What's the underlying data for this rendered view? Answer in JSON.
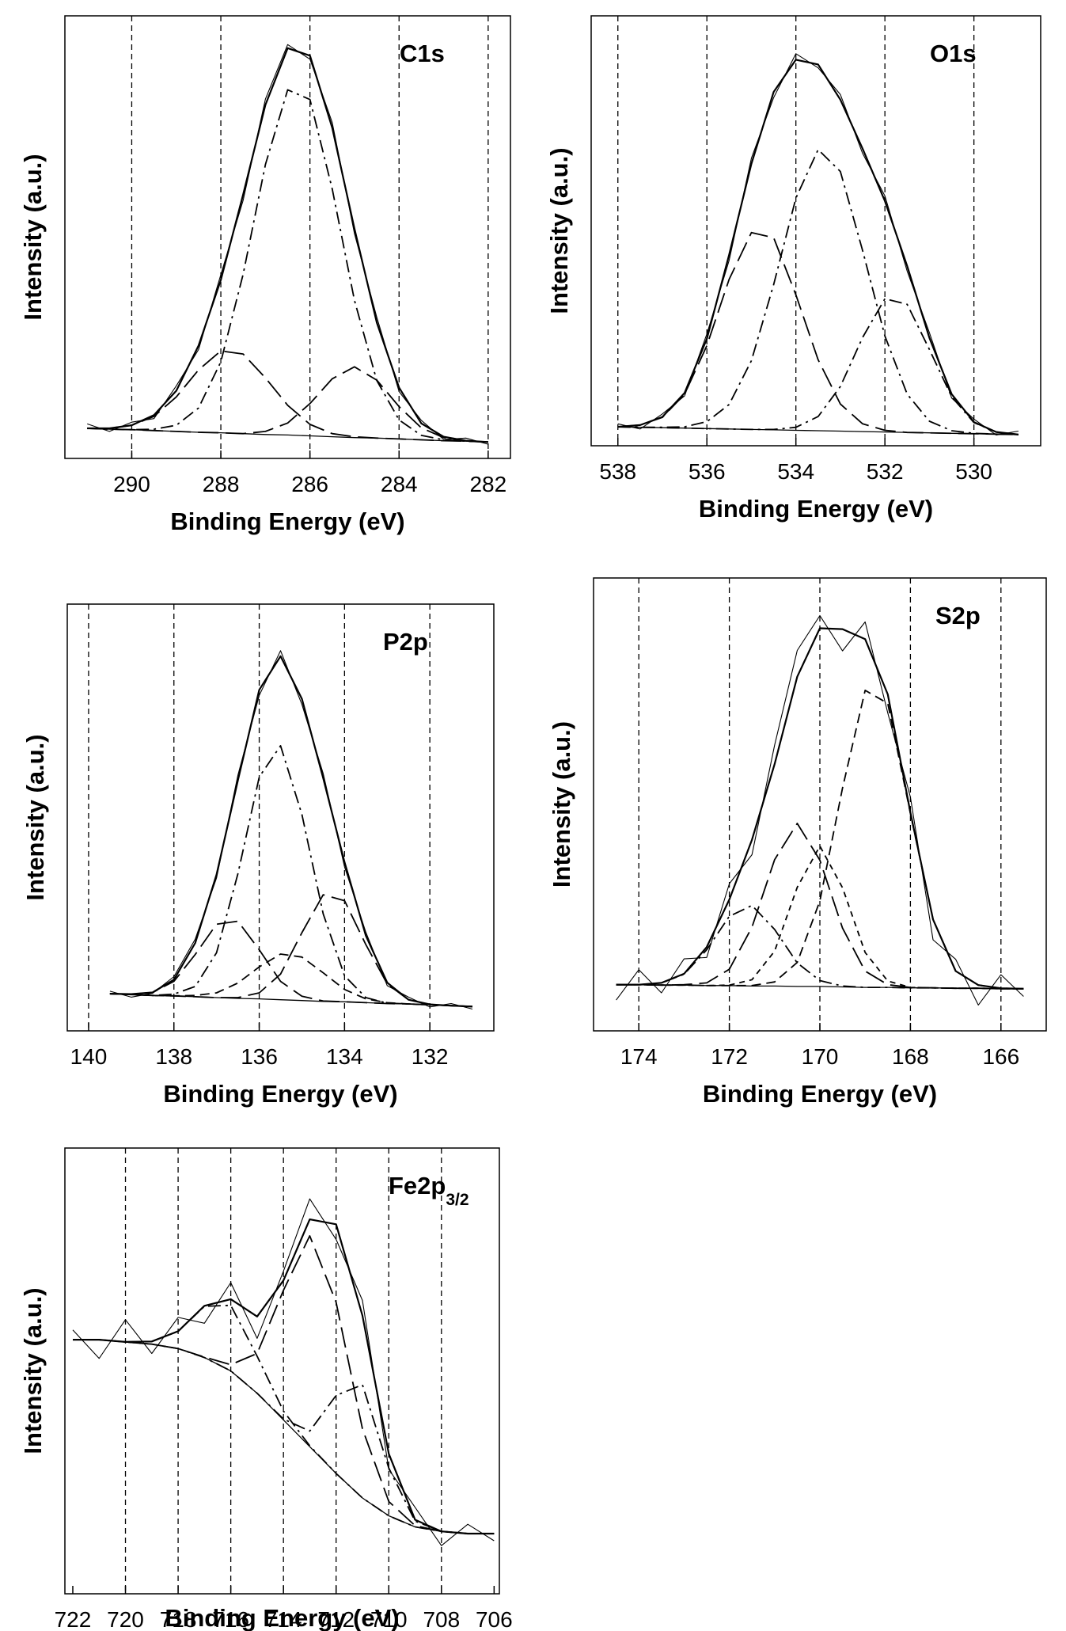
{
  "chart_data": [
    {
      "type": "line",
      "title": "C1s",
      "xlabel": "Binding Energy (eV)",
      "ylabel": "Intensity (a.u.)",
      "xlim": [
        291.5,
        281.5
      ],
      "xticks": [
        290,
        288,
        286,
        284,
        282
      ],
      "ylim": [
        0,
        100
      ],
      "vlines": [
        290,
        288,
        286,
        284,
        282
      ],
      "x": [
        291,
        290.5,
        290,
        289.5,
        289,
        288.5,
        288,
        287.5,
        287,
        286.5,
        286,
        285.5,
        285,
        284.5,
        284,
        283.5,
        283,
        282.5,
        282
      ],
      "series": [
        {
          "style": "solid",
          "color": "#000",
          "values": [
            6.8,
            6.6,
            6.5,
            6.3,
            6.1,
            5.9,
            5.8,
            5.6,
            5.4,
            5.3,
            5.1,
            4.9,
            4.7,
            4.6,
            4.4,
            4.2,
            4.0,
            3.9,
            3.7
          ]
        },
        {
          "style": "dashdot",
          "color": "#000",
          "values": [
            6.8,
            6.6,
            6.5,
            6.6,
            7.5,
            11.4,
            21.8,
            41.6,
            66.4,
            83.3,
            81.1,
            60.9,
            35.7,
            17.6,
            8.7,
            5.2,
            4.2,
            3.9,
            3.7
          ]
        },
        {
          "style": "longdash",
          "color": "#000",
          "values": [
            6.8,
            6.8,
            7.5,
            9.5,
            13.9,
            20.0,
            24.3,
            23.6,
            18.2,
            12.0,
            7.7,
            5.6,
            4.9,
            4.6,
            4.4,
            4.2,
            4.0,
            3.9,
            3.7
          ]
        },
        {
          "style": "longdash",
          "color": "#000",
          "values": [
            6.8,
            6.6,
            6.5,
            6.3,
            6.1,
            5.9,
            5.8,
            5.6,
            6.1,
            8.0,
            12.4,
            18.0,
            20.7,
            17.7,
            11.7,
            6.9,
            4.7,
            4.0,
            3.7
          ]
        },
        {
          "style": "envelope",
          "color": "#000",
          "values": [
            6.8,
            6.8,
            7.5,
            9.8,
            15.3,
            25.5,
            40.3,
            59.6,
            79.9,
            92.7,
            91.0,
            74.7,
            51.9,
            30.7,
            16.0,
            7.9,
            4.9,
            4.0,
            3.7
          ]
        },
        {
          "style": "raw",
          "color": "#000",
          "values": [
            7.8,
            6.1,
            8.2,
            9.0,
            16.4,
            24.6,
            41.5,
            58.3,
            81.2,
            93.5,
            90.2,
            75.9,
            50.8,
            31.9,
            15.1,
            8.6,
            4.3,
            4.6,
            3.2
          ]
        }
      ]
    },
    {
      "type": "line",
      "title": "O1s",
      "xlabel": "Binding Energy (eV)",
      "ylabel": "Intensity (a.u.)",
      "xlim": [
        538.6,
        528.5
      ],
      "xticks": [
        538,
        536,
        534,
        532,
        530
      ],
      "ylim": [
        0,
        100
      ],
      "vlines": [
        538,
        536,
        534,
        532,
        530
      ],
      "x": [
        538,
        537.5,
        537,
        536.5,
        536,
        535.5,
        535,
        534.5,
        534,
        533.5,
        533,
        532.5,
        532,
        531.5,
        531,
        530.5,
        530,
        529.5,
        529
      ],
      "series": [
        {
          "style": "solid",
          "color": "#000",
          "values": [
            4.4,
            4.3,
            4.2,
            4.1,
            4.0,
            3.9,
            3.8,
            3.7,
            3.6,
            3.5,
            3.4,
            3.3,
            3.2,
            3.1,
            3.0,
            2.9,
            2.8,
            2.7,
            2.6
          ]
        },
        {
          "style": "longdash",
          "color": "#000",
          "values": [
            4.4,
            4.8,
            6.6,
            12.0,
            23.3,
            38.7,
            49.6,
            48.4,
            35.1,
            20.0,
            9.7,
            5.1,
            3.6,
            3.1,
            3.0,
            2.9,
            2.8,
            2.7,
            2.6
          ]
        },
        {
          "style": "dashdot",
          "color": "#000",
          "values": [
            4.4,
            4.3,
            4.3,
            4.4,
            5.6,
            9.6,
            19.8,
            37.5,
            57.6,
            68.9,
            63.8,
            45.4,
            25.5,
            12.0,
            5.7,
            3.5,
            2.9,
            2.7,
            2.6
          ]
        },
        {
          "style": "dashdot",
          "color": "#000",
          "values": [
            4.4,
            4.3,
            4.2,
            4.1,
            4.0,
            3.9,
            3.8,
            3.8,
            4.3,
            6.8,
            13.8,
            25.2,
            34.2,
            32.9,
            22.4,
            11.4,
            5.4,
            3.2,
            2.6
          ]
        },
        {
          "style": "envelope",
          "color": "#000",
          "values": [
            4.4,
            4.8,
            6.7,
            12.3,
            24.9,
            44.4,
            65.6,
            82.3,
            89.8,
            88.7,
            80.5,
            69.1,
            56.9,
            41.8,
            25.1,
            12.0,
            5.5,
            3.2,
            2.6
          ]
        },
        {
          "style": "raw",
          "color": "#000",
          "values": [
            5.1,
            3.9,
            7.4,
            11.6,
            26.0,
            43.1,
            66.9,
            81.0,
            91.2,
            87.9,
            81.7,
            68.0,
            58.1,
            40.6,
            26.3,
            11.1,
            6.2,
            2.5,
            3.4
          ]
        }
      ]
    },
    {
      "type": "line",
      "title": "P2p",
      "xlabel": "Binding Energy (eV)",
      "ylabel": "Intensity (a.u.)",
      "xlim": [
        140.5,
        130.5
      ],
      "xticks": [
        140,
        138,
        136,
        134,
        132
      ],
      "ylim": [
        0,
        100
      ],
      "vlines": [
        140,
        138,
        136,
        134,
        132
      ],
      "x": [
        139.5,
        139,
        138.5,
        138,
        137.5,
        137,
        136.5,
        136,
        135.5,
        135,
        134.5,
        134,
        133.5,
        133,
        132.5,
        132,
        131.5,
        131
      ],
      "series": [
        {
          "style": "solid",
          "color": "#000",
          "values": [
            8.7,
            8.5,
            8.3,
            8.2,
            8.0,
            7.8,
            7.6,
            7.5,
            7.3,
            7.1,
            6.9,
            6.8,
            6.6,
            6.4,
            6.3,
            6.1,
            5.9,
            5.7
          ]
        },
        {
          "style": "dashdot",
          "color": "#000",
          "values": [
            8.7,
            8.5,
            8.3,
            8.6,
            10.4,
            18.3,
            36.8,
            59.5,
            66.8,
            50.7,
            27.4,
            12.9,
            7.8,
            6.5,
            6.3,
            6.1,
            5.9,
            5.7
          ]
        },
        {
          "style": "longdash",
          "color": "#000",
          "values": [
            8.7,
            8.6,
            9.0,
            11.6,
            17.9,
            25.0,
            25.7,
            19.0,
            11.6,
            8.1,
            7.0,
            6.8,
            6.6,
            6.4,
            6.3,
            6.1,
            5.9,
            5.7
          ]
        },
        {
          "style": "longdash",
          "color": "#000",
          "values": [
            8.7,
            8.5,
            8.3,
            8.2,
            8.0,
            7.8,
            7.8,
            8.9,
            13.3,
            23.0,
            31.9,
            30.5,
            20.2,
            11.0,
            7.3,
            6.2,
            5.9,
            5.7
          ]
        },
        {
          "style": "dash",
          "color": "#000",
          "values": [
            8.7,
            8.5,
            8.3,
            8.2,
            8.3,
            8.9,
            11.2,
            15.0,
            18.0,
            17.3,
            13.6,
            9.7,
            7.5,
            6.6,
            6.3,
            6.1,
            5.9,
            5.7
          ]
        },
        {
          "style": "envelope",
          "color": "#000",
          "values": [
            8.7,
            8.6,
            9.0,
            12.0,
            20.6,
            36.6,
            58.7,
            79.9,
            87.8,
            77.8,
            59.2,
            39.5,
            22.3,
            11.3,
            7.3,
            6.2,
            5.9,
            5.7
          ]
        },
        {
          "style": "raw",
          "color": "#000",
          "values": [
            9.3,
            7.9,
            8.8,
            12.7,
            21.5,
            35.8,
            59.9,
            78.6,
            89.1,
            76.5,
            60.3,
            38.4,
            23.1,
            10.6,
            7.9,
            5.6,
            6.4,
            5.1
          ]
        }
      ]
    },
    {
      "type": "line",
      "title": "S2p",
      "xlabel": "Binding Energy (eV)",
      "ylabel": "Intensity (a.u.)",
      "xlim": [
        175,
        165
      ],
      "xticks": [
        174,
        172,
        170,
        168,
        166
      ],
      "ylim": [
        0,
        100
      ],
      "vlines": [
        174,
        172,
        170,
        168,
        166
      ],
      "x": [
        174.5,
        174,
        173.5,
        173,
        172.5,
        172,
        171.5,
        171,
        170.5,
        170,
        169.5,
        169,
        168.5,
        168,
        167.5,
        167,
        166.5,
        166,
        165.5
      ],
      "series": [
        {
          "style": "solid",
          "color": "#000",
          "values": [
            10.2,
            10.2,
            10.1,
            10.1,
            10.0,
            10.0,
            9.9,
            9.9,
            9.8,
            9.8,
            9.7,
            9.6,
            9.6,
            9.5,
            9.5,
            9.4,
            9.4,
            9.3,
            9.3
          ]
        },
        {
          "style": "dash",
          "color": "#000",
          "values": [
            10.2,
            10.2,
            10.1,
            10.1,
            10.0,
            10.0,
            10.0,
            10.8,
            15.1,
            28.7,
            53.6,
            75.2,
            72.3,
            48.0,
            24.6,
            13.2,
            10.1,
            9.4,
            9.3
          ]
        },
        {
          "style": "longdash",
          "color": "#000",
          "values": [
            10.2,
            10.2,
            10.1,
            10.2,
            10.6,
            13.6,
            22.9,
            37.8,
            45.8,
            37.7,
            22.7,
            13.2,
            10.2,
            9.6,
            9.5,
            9.4,
            9.4,
            9.3,
            9.3
          ]
        },
        {
          "style": "shortdash",
          "color": "#000",
          "values": [
            10.2,
            10.2,
            10.1,
            10.1,
            10.0,
            10.1,
            11.3,
            17.6,
            31.7,
            40.8,
            31.6,
            17.3,
            11.0,
            9.6,
            9.5,
            9.4,
            9.4,
            9.3,
            9.3
          ]
        },
        {
          "style": "dashdot",
          "color": "#000",
          "values": [
            10.2,
            10.2,
            10.6,
            12.5,
            17.9,
            25.3,
            27.7,
            22.4,
            15.0,
            11.1,
            9.9,
            9.6,
            9.6,
            9.5,
            9.5,
            9.4,
            9.4,
            9.3,
            9.3
          ]
        },
        {
          "style": "envelope",
          "color": "#000",
          "values": [
            10.2,
            10.2,
            10.6,
            12.6,
            18.5,
            29.0,
            42.2,
            58.9,
            78.2,
            88.9,
            88.7,
            86.5,
            74.3,
            48.2,
            24.6,
            13.2,
            10.1,
            9.4,
            9.3
          ]
        },
        {
          "style": "raw",
          "color": "#000",
          "values": [
            6.8,
            13.5,
            8.4,
            15.9,
            16.2,
            32.5,
            38.9,
            63.1,
            84.0,
            91.7,
            83.9,
            90.3,
            70.2,
            51.6,
            20.1,
            15.8,
            5.7,
            12.4,
            7.6
          ]
        }
      ]
    },
    {
      "type": "line",
      "title": "Fe2p",
      "title_sub": "3/2",
      "xlabel": "Binding Energy (eV)",
      "ylabel": "Intensity (a.u.)",
      "xlim": [
        722.3,
        705.8
      ],
      "xticks": [
        722,
        720,
        718,
        716,
        714,
        712,
        710,
        708,
        706
      ],
      "ylim": [
        0,
        100
      ],
      "vlines": [
        720,
        718,
        716,
        714,
        712,
        710,
        708
      ],
      "x": [
        722,
        721,
        720,
        719,
        718,
        717,
        716,
        715,
        714,
        713,
        712,
        711,
        710,
        709,
        708,
        707,
        706
      ],
      "series": [
        {
          "style": "solid",
          "color": "#000",
          "values": [
            57,
            57,
            56.5,
            56,
            55,
            53,
            50,
            45,
            39,
            33,
            27,
            21.5,
            17.5,
            15,
            14,
            13.5,
            13.5
          ]
        },
        {
          "style": "dashdot",
          "color": "#000",
          "values": [
            57,
            57,
            56.5,
            56.6,
            58.9,
            64.5,
            64.7,
            53.3,
            41.0,
            33.2,
            27,
            21.5,
            17.5,
            15,
            14,
            13.5,
            13.5
          ]
        },
        {
          "style": "longdash",
          "color": "#000",
          "values": [
            57,
            57,
            56.5,
            56,
            55,
            53.1,
            51.4,
            53.9,
            68.1,
            80.3,
            65.4,
            37.0,
            20.7,
            15.3,
            14,
            13.5,
            13.5
          ]
        },
        {
          "style": "dashdot",
          "color": "#000",
          "values": [
            57,
            57,
            56.5,
            56,
            55,
            53,
            50,
            45,
            39.2,
            36.5,
            44.5,
            46.9,
            28.2,
            16.3,
            14,
            13.5,
            13.5
          ]
        },
        {
          "style": "envelope",
          "color": "#000",
          "values": [
            57,
            57,
            56.5,
            56.6,
            58.9,
            64.6,
            66.1,
            62.2,
            70.3,
            84.0,
            82.9,
            62.4,
            31.4,
            16.6,
            14,
            13.5,
            13.5
          ]
        },
        {
          "style": "raw",
          "color": "#000",
          "values": [
            59.2,
            52.8,
            61.5,
            53.9,
            62.0,
            60.7,
            69.8,
            57.3,
            72.4,
            88.6,
            79.5,
            65.8,
            27.9,
            19.4,
            10.8,
            15.6,
            11.9
          ]
        }
      ]
    }
  ]
}
